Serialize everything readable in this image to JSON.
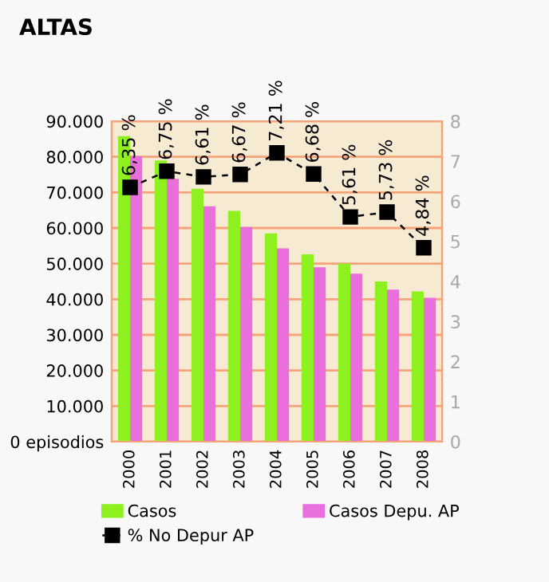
{
  "chart_data": {
    "type": "bar",
    "title": "ALTAS",
    "categories": [
      "2000",
      "2001",
      "2002",
      "2003",
      "2004",
      "2005",
      "2006",
      "2007",
      "2008"
    ],
    "series": [
      {
        "name": "Casos",
        "color": "#8ef01e",
        "values": [
          85800,
          79000,
          71000,
          64800,
          58500,
          52600,
          50000,
          45000,
          42200
        ]
      },
      {
        "name": "Casos Depu. AP",
        "color": "#e86fdc",
        "values": [
          80200,
          73800,
          66100,
          60300,
          54300,
          49000,
          47200,
          42700,
          40400
        ]
      },
      {
        "name": "% No Depur AP",
        "type": "line",
        "axis": "y2",
        "color": "#000000",
        "marker": "square",
        "line_style": "dashed",
        "values": [
          6.35,
          6.75,
          6.61,
          6.67,
          7.21,
          6.68,
          5.61,
          5.73,
          4.84
        ],
        "value_labels": [
          "6,35 %",
          "6,75 %",
          "6,61 %",
          "6,67 %",
          "7,21 %",
          "6,68 %",
          "5,61 %",
          "5,73 %",
          "4,84 %"
        ]
      }
    ],
    "ylim": [
      0,
      90000
    ],
    "yticks": [
      {
        "value": 0,
        "label": "0 episodios"
      },
      {
        "value": 10000,
        "label": "10.000"
      },
      {
        "value": 20000,
        "label": "20.000"
      },
      {
        "value": 30000,
        "label": "30.000"
      },
      {
        "value": 40000,
        "label": "40.000"
      },
      {
        "value": 50000,
        "label": "50.000"
      },
      {
        "value": 60000,
        "label": "60.000"
      },
      {
        "value": 70000,
        "label": "70.000"
      },
      {
        "value": 80000,
        "label": "80.000"
      },
      {
        "value": 90000,
        "label": "90.000"
      }
    ],
    "y2lim": [
      0,
      8
    ],
    "y2ticks": [
      0,
      1,
      2,
      3,
      4,
      5,
      6,
      7,
      8
    ],
    "grid": "y",
    "legend": "bottom"
  }
}
